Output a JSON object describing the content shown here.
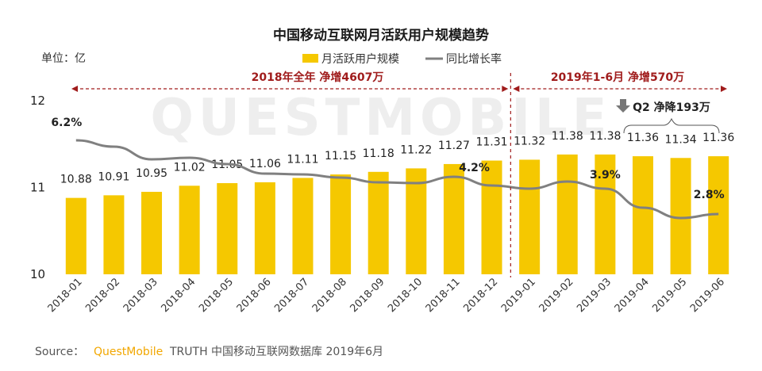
{
  "chart_data": {
    "type": "bar",
    "title": "中国移动互联网月活跃用户规模趋势",
    "unit_label": "单位：亿",
    "categories": [
      "2018-01",
      "2018-02",
      "2018-03",
      "2018-04",
      "2018-05",
      "2018-06",
      "2018-07",
      "2018-08",
      "2018-09",
      "2018-10",
      "2018-11",
      "2018-12",
      "2019-01",
      "2019-02",
      "2019-03",
      "2019-04",
      "2019-05",
      "2019-06"
    ],
    "series": [
      {
        "name": "月活跃用户规模",
        "type": "bar",
        "color": "#f5c800",
        "values": [
          10.88,
          10.91,
          10.95,
          11.02,
          11.05,
          11.06,
          11.11,
          11.15,
          11.18,
          11.22,
          11.27,
          11.31,
          11.32,
          11.38,
          11.38,
          11.36,
          11.34,
          11.36
        ]
      },
      {
        "name": "同比增长率",
        "type": "line",
        "color": "#808080",
        "labeled_points": [
          {
            "category": "2018-01",
            "label": "6.2%"
          },
          {
            "category": "2018-12",
            "label": "4.2%"
          },
          {
            "category": "2019-03",
            "label": "3.9%"
          },
          {
            "category": "2019-06",
            "label": "2.8%"
          }
        ]
      }
    ],
    "ylim": [
      10,
      12
    ],
    "yticks": [
      "10",
      "11",
      "12"
    ],
    "legend_position": "top-center",
    "annotations": {
      "period_2018": "2018年全年  净增4607万",
      "period_2019": "2019年1-6月  净增570万",
      "q2_note": "Q2  净降193万"
    }
  },
  "source": {
    "prefix": "Source：",
    "brand": "QuestMobile",
    "rest": " TRUTH 中国移动互联网数据库 2019年6月"
  },
  "watermark": "QUESTMOBILE",
  "colors": {
    "bar": "#f5c800",
    "line": "#808080",
    "accent_red": "#a01c1c",
    "brand": "#f2a700"
  }
}
